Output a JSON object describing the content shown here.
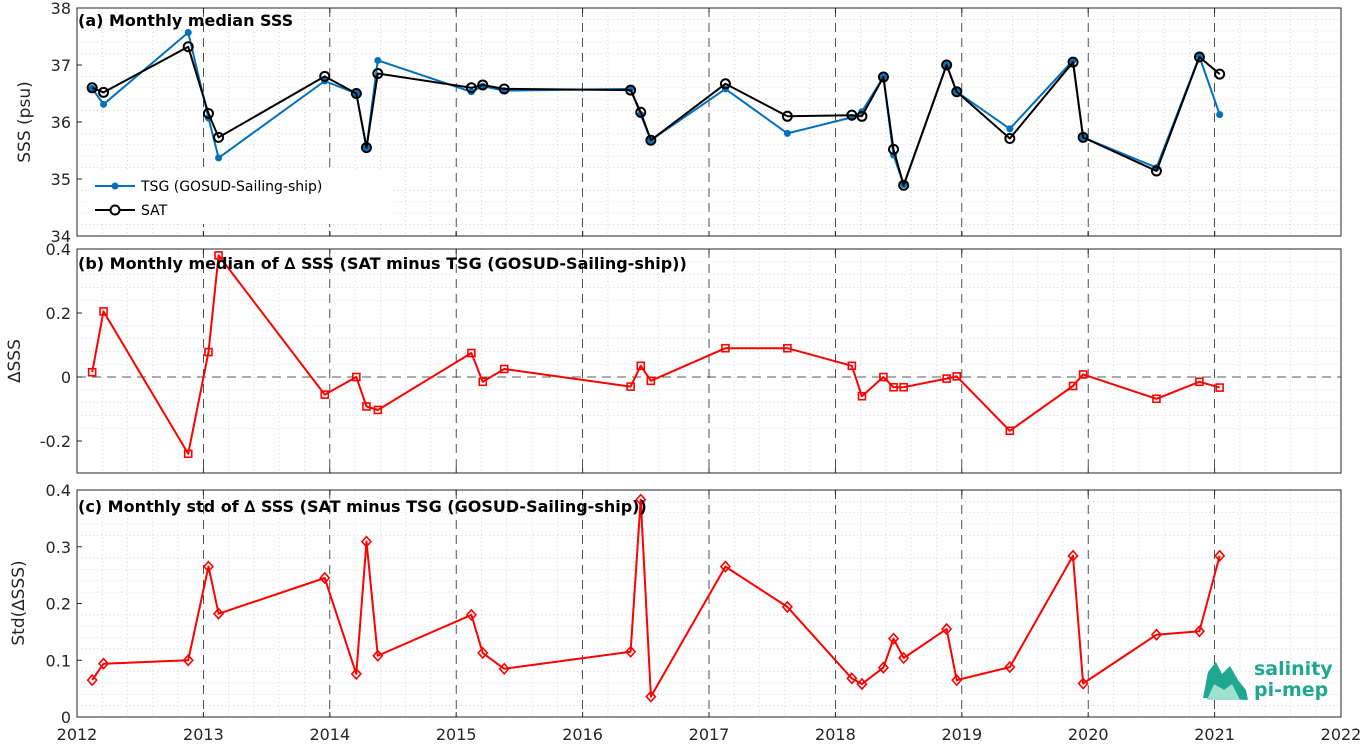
{
  "colors": {
    "tsg": "#0072BD",
    "sat": "#000000",
    "delta": "#FF0000",
    "logo": "#1fa88f"
  },
  "logo": {
    "line1": "salinity",
    "line2": "pi-mep"
  },
  "chart_data": [
    {
      "type": "line",
      "title": "(a) Monthly median SSS",
      "ylabel": "SSS (psu)",
      "xlim": [
        2012,
        2022
      ],
      "ylim": [
        34,
        38
      ],
      "yticks": [
        34,
        35,
        36,
        37,
        38
      ],
      "xticks": [
        2012,
        2013,
        2014,
        2015,
        2016,
        2017,
        2018,
        2019,
        2020,
        2021,
        2022
      ],
      "grid": true,
      "legend_position": "bottom-left",
      "series": [
        {
          "name": "TSG (GOSUD-Sailing-ship)",
          "marker": "dot",
          "x": [
            2012.12,
            2012.21,
            2012.88,
            2013.04,
            2013.12,
            2013.96,
            2014.21,
            2014.29,
            2014.38,
            2015.12,
            2015.21,
            2015.38,
            2016.38,
            2016.46,
            2016.54,
            2017.13,
            2017.62,
            2018.13,
            2018.21,
            2018.38,
            2018.46,
            2018.54,
            2018.88,
            2018.96,
            2019.38,
            2019.88,
            2019.96,
            2020.54,
            2020.88,
            2021.04
          ],
          "y": [
            36.59,
            36.31,
            37.57,
            36.07,
            35.37,
            36.72,
            36.5,
            35.55,
            37.08,
            36.53,
            36.63,
            36.55,
            36.58,
            36.13,
            35.68,
            36.58,
            35.8,
            36.08,
            36.18,
            36.79,
            35.42,
            34.9,
            37.0,
            36.53,
            35.88,
            37.08,
            35.73,
            35.2,
            37.15,
            36.13
          ]
        },
        {
          "name": "SAT",
          "marker": "circle",
          "x": [
            2012.12,
            2012.21,
            2012.88,
            2013.04,
            2013.12,
            2013.96,
            2014.21,
            2014.29,
            2014.38,
            2015.12,
            2015.21,
            2015.38,
            2016.38,
            2016.46,
            2016.54,
            2017.13,
            2017.62,
            2018.13,
            2018.21,
            2018.38,
            2018.46,
            2018.54,
            2018.88,
            2018.96,
            2019.38,
            2019.88,
            2019.96,
            2020.54,
            2020.88,
            2021.04
          ],
          "y": [
            36.6,
            36.52,
            37.32,
            36.15,
            35.73,
            36.8,
            36.5,
            35.55,
            36.85,
            36.6,
            36.65,
            36.58,
            36.56,
            36.17,
            35.68,
            36.67,
            36.1,
            36.12,
            36.1,
            36.79,
            35.52,
            34.89,
            37.0,
            36.53,
            35.71,
            37.05,
            35.73,
            35.14,
            37.14,
            36.84
          ]
        }
      ]
    },
    {
      "type": "line",
      "title": "(b) Monthly median of ∆ SSS (SAT minus TSG (GOSUD-Sailing-ship))",
      "ylabel": "∆SSS",
      "xlim": [
        2012,
        2022
      ],
      "ylim": [
        -0.3,
        0.4
      ],
      "yticks": [
        -0.2,
        0,
        0.2,
        0.4
      ],
      "ytick_labels": [
        "-0.2",
        "0",
        "0.2",
        "0.4"
      ],
      "grid": true,
      "zero_line": true,
      "series": [
        {
          "marker": "square",
          "x": [
            2012.12,
            2012.21,
            2012.88,
            2013.04,
            2013.12,
            2013.96,
            2014.21,
            2014.29,
            2014.38,
            2015.12,
            2015.21,
            2015.38,
            2016.38,
            2016.46,
            2016.54,
            2017.13,
            2017.62,
            2018.13,
            2018.21,
            2018.38,
            2018.46,
            2018.54,
            2018.88,
            2018.96,
            2019.38,
            2019.88,
            2019.96,
            2020.54,
            2020.88,
            2021.04
          ],
          "y": [
            0.015,
            0.205,
            -0.24,
            0.078,
            0.38,
            -0.055,
            0.0,
            -0.092,
            -0.103,
            0.075,
            -0.015,
            0.025,
            -0.03,
            0.035,
            -0.012,
            0.09,
            0.09,
            0.035,
            -0.06,
            0.0,
            -0.032,
            -0.032,
            -0.005,
            0.002,
            -0.168,
            -0.028,
            0.008,
            -0.068,
            -0.015,
            -0.033
          ]
        }
      ]
    },
    {
      "type": "line",
      "title": "(c) Monthly std of ∆ SSS (SAT minus TSG (GOSUD-Sailing-ship))",
      "ylabel": "Std(∆SSS)",
      "xlim": [
        2012,
        2022
      ],
      "ylim": [
        0,
        0.4
      ],
      "yticks": [
        0,
        0.1,
        0.2,
        0.3,
        0.4
      ],
      "ytick_labels": [
        "0",
        "0.1",
        "0.2",
        "0.3",
        "0.4"
      ],
      "xtick_labels": [
        "2012",
        "2013",
        "2014",
        "2015",
        "2016",
        "2017",
        "2018",
        "2019",
        "2020",
        "2021",
        "2022"
      ],
      "grid": true,
      "series": [
        {
          "marker": "diamond",
          "x": [
            2012.12,
            2012.21,
            2012.88,
            2013.04,
            2013.12,
            2013.96,
            2014.21,
            2014.29,
            2014.38,
            2015.12,
            2015.21,
            2015.38,
            2016.38,
            2016.46,
            2016.54,
            2017.13,
            2017.62,
            2018.13,
            2018.21,
            2018.38,
            2018.46,
            2018.54,
            2018.88,
            2018.96,
            2019.38,
            2019.88,
            2019.96,
            2020.54,
            2020.88,
            2021.04
          ],
          "y": [
            0.065,
            0.094,
            0.1,
            0.265,
            0.182,
            0.245,
            0.076,
            0.309,
            0.108,
            0.18,
            0.113,
            0.085,
            0.115,
            0.383,
            0.036,
            0.265,
            0.194,
            0.068,
            0.058,
            0.087,
            0.138,
            0.104,
            0.155,
            0.065,
            0.088,
            0.284,
            0.059,
            0.145,
            0.151,
            0.284
          ]
        }
      ]
    }
  ]
}
